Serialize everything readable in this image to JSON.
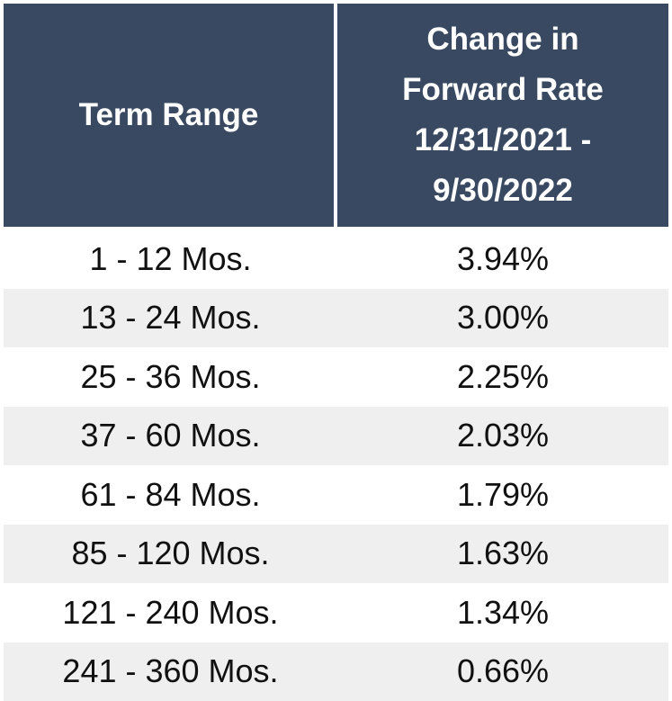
{
  "table": {
    "header": [
      "Term Range",
      [
        "Change in",
        "Forward Rate",
        "12/31/2021 -",
        "9/30/2022"
      ]
    ],
    "rows": [
      [
        "1 - 12 Mos.",
        "3.94%"
      ],
      [
        "13 - 24 Mos.",
        "3.00%"
      ],
      [
        "25 - 36 Mos.",
        "2.25%"
      ],
      [
        "37 - 60 Mos.",
        "2.03%"
      ],
      [
        "61 - 84 Mos.",
        "1.79%"
      ],
      [
        "85 - 120 Mos.",
        "1.63%"
      ],
      [
        "121 - 240 Mos.",
        "1.34%"
      ],
      [
        "241 - 360 Mos.",
        "0.66%"
      ]
    ]
  }
}
